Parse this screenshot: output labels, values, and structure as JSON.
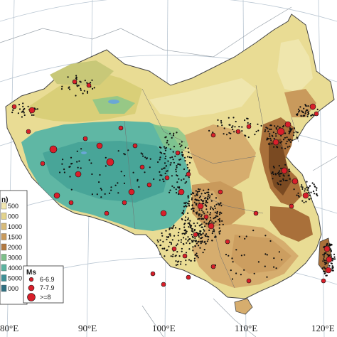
{
  "map": {
    "longitude_labels": [
      "80°E",
      "90°E",
      "100°E",
      "110°E",
      "120°E"
    ],
    "colors": {
      "ocean": "#ffffff",
      "neighbor_land": "#ffffff",
      "lowland_plain": "#e9dc94",
      "lowland_light": "#efe6ad",
      "hills": "#d6ad6e",
      "mountains_brown": "#a9703a",
      "dark_brown": "#7a4a22",
      "plateau_teal": "#5fb7a4",
      "plateau_green": "#86c58a",
      "desert_yellow": "#d9cf78",
      "graticule": "#b9c6d2",
      "border": "#444444",
      "quake_fill": "#d81f2a",
      "quake_stroke": "#111111",
      "small_quake": "#111111"
    }
  },
  "elevation_legend": {
    "title_fragment": "n)",
    "entries": [
      "500",
      "000",
      "1000",
      "1500",
      "2000",
      "3000",
      "4000",
      "5000",
      "000"
    ],
    "colors": [
      "#f2e7b0",
      "#e3d38c",
      "#d8bb78",
      "#c99a5c",
      "#b27a42",
      "#7dc08a",
      "#5bb3a0",
      "#3f8f95",
      "#2f6f80"
    ]
  },
  "ms_legend": {
    "title": "Ms",
    "entries": [
      {
        "label": "6-6.9",
        "size": "small"
      },
      {
        "label": "7-7.9",
        "size": "medium"
      },
      {
        "label": ">=8",
        "size": "large"
      }
    ]
  }
}
